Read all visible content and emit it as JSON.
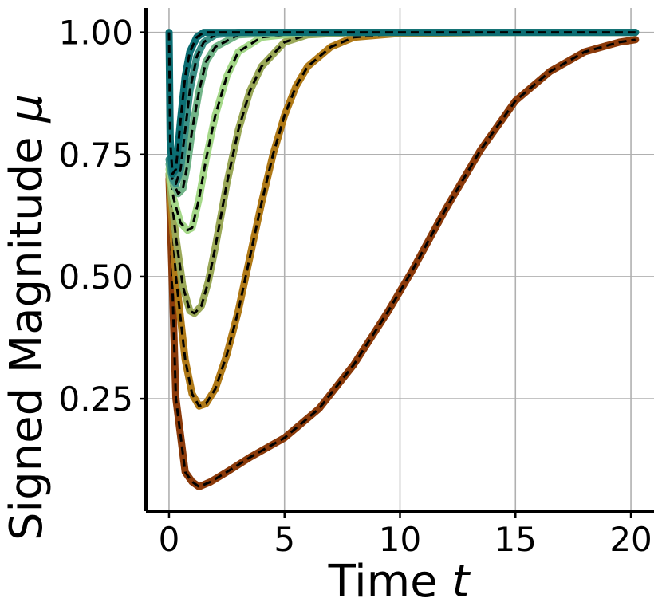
{
  "chart_data": {
    "type": "line",
    "title": "",
    "xlabel": "Time t",
    "xlabel_parts": {
      "text": "Time ",
      "var": "t"
    },
    "ylabel": "Signed Magnitude μ",
    "ylabel_parts": {
      "text": "Signed Magnitude ",
      "var": "μ"
    },
    "xlim": [
      -1,
      21
    ],
    "ylim": [
      0.02,
      1.05
    ],
    "xticks": [
      0,
      5,
      10,
      15,
      20
    ],
    "xtick_labels": [
      "0",
      "5",
      "10",
      "15",
      "20"
    ],
    "yticks": [
      0.25,
      0.5,
      0.75,
      1.0
    ],
    "ytick_labels": [
      "0.25",
      "0.50",
      "0.75",
      "1.00"
    ],
    "grid": true,
    "legend": "none",
    "series_style": {
      "overlay_dash_color": "#000000",
      "overlay_style": "dashed"
    },
    "series": [
      {
        "color": "#8b3a0a",
        "x": [
          0,
          0.3,
          0.7,
          1.0,
          1.3,
          1.8,
          2.5,
          3.5,
          5.0,
          6.5,
          8.0,
          9.5,
          10.5,
          12.0,
          13.5,
          15.0,
          16.5,
          18.0,
          19.5,
          20.2
        ],
        "y": [
          0.7,
          0.25,
          0.1,
          0.08,
          0.07,
          0.08,
          0.1,
          0.13,
          0.17,
          0.23,
          0.32,
          0.43,
          0.51,
          0.64,
          0.76,
          0.86,
          0.92,
          0.96,
          0.98,
          0.985
        ]
      },
      {
        "color": "#b07a18",
        "x": [
          0,
          0.3,
          0.7,
          1.0,
          1.3,
          1.6,
          2.0,
          2.5,
          3.0,
          3.5,
          4.0,
          4.5,
          5.0,
          5.5,
          6.0,
          7.0,
          8.0,
          10.0,
          15.0,
          20.2
        ],
        "y": [
          0.71,
          0.5,
          0.33,
          0.26,
          0.235,
          0.24,
          0.27,
          0.34,
          0.43,
          0.54,
          0.65,
          0.75,
          0.83,
          0.89,
          0.93,
          0.97,
          0.99,
          0.998,
          1.0,
          1.0
        ]
      },
      {
        "color": "#9aa858",
        "x": [
          0,
          0.3,
          0.6,
          0.9,
          1.1,
          1.4,
          1.7,
          2.0,
          2.5,
          3.0,
          3.5,
          4.0,
          5.0,
          6.0,
          8.0,
          12.0,
          20.2
        ],
        "y": [
          0.71,
          0.58,
          0.48,
          0.43,
          0.425,
          0.44,
          0.49,
          0.56,
          0.69,
          0.8,
          0.88,
          0.93,
          0.98,
          0.995,
          1.0,
          1.0,
          1.0
        ]
      },
      {
        "color": "#a5d889",
        "x": [
          0,
          0.2,
          0.5,
          0.8,
          1.0,
          1.3,
          1.6,
          2.0,
          2.5,
          3.0,
          4.0,
          6.0,
          10.0,
          20.2
        ],
        "y": [
          0.72,
          0.66,
          0.61,
          0.595,
          0.6,
          0.66,
          0.74,
          0.83,
          0.91,
          0.96,
          0.99,
          1.0,
          1.0,
          1.0
        ]
      },
      {
        "color": "#72b488",
        "x": [
          0,
          0.2,
          0.4,
          0.6,
          0.8,
          1.0,
          1.3,
          1.6,
          2.0,
          3.0,
          5.0,
          20.2
        ],
        "y": [
          0.73,
          0.69,
          0.67,
          0.68,
          0.73,
          0.8,
          0.88,
          0.94,
          0.97,
          0.995,
          1.0,
          1.0
        ]
      },
      {
        "color": "#3a8f86",
        "x": [
          0,
          0.15,
          0.3,
          0.5,
          0.7,
          0.9,
          1.2,
          1.5,
          2.0,
          3.0,
          20.2
        ],
        "y": [
          0.74,
          0.7,
          0.69,
          0.72,
          0.8,
          0.88,
          0.95,
          0.98,
          0.995,
          1.0,
          1.0
        ]
      },
      {
        "color": "#0c6e73",
        "x": [
          0,
          0.05,
          0.15,
          0.3,
          0.5,
          0.7,
          0.9,
          1.2,
          1.5,
          2.0,
          20.2
        ],
        "y": [
          1.0,
          0.78,
          0.71,
          0.72,
          0.82,
          0.91,
          0.96,
          0.99,
          1.0,
          1.0,
          1.0
        ]
      }
    ]
  }
}
